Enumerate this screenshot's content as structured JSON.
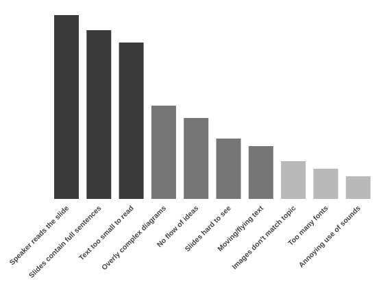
{
  "chart_data": {
    "type": "bar",
    "categories": [
      "Speaker reads the slide",
      "Slides contain full sentences",
      "Text too small to read",
      "Overly complex diagrams",
      "No flow of ideas",
      "Slides hard to see",
      "Moving/flying text",
      "Images don't match topic",
      "Too many fonts",
      "Annoying use of sounds"
    ],
    "values": [
      268,
      246,
      228,
      136,
      118,
      88,
      77,
      55,
      44,
      33
    ],
    "colors": [
      "#3a3a3a",
      "#3a3a3a",
      "#3a3a3a",
      "#767676",
      "#767676",
      "#767676",
      "#767676",
      "#b9b9b9",
      "#b9b9b9",
      "#b9b9b9"
    ],
    "ylim": [
      0,
      270
    ]
  }
}
